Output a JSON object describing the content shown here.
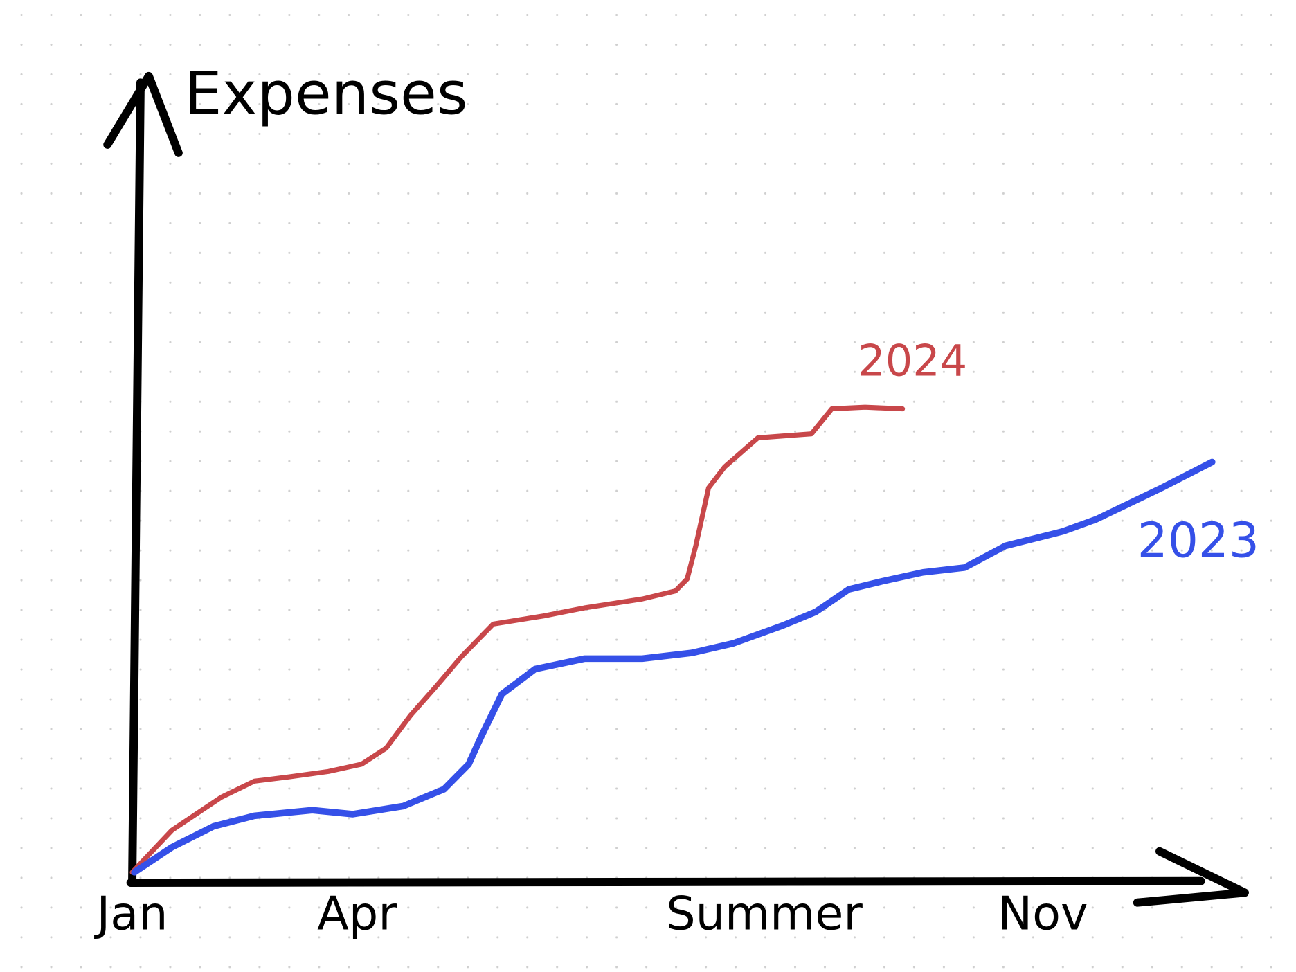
{
  "chart_data": {
    "type": "line",
    "y_label": "Expenses",
    "xlim": [
      0,
      104
    ],
    "ylim": [
      0,
      100
    ],
    "xticks": [
      {
        "value": 0,
        "label": "Jan"
      },
      {
        "value": 21,
        "label": "Apr"
      },
      {
        "value": 59,
        "label": "Summer"
      },
      {
        "value": 85,
        "label": "Nov"
      }
    ],
    "series": [
      {
        "name": "2024",
        "color": "#c8474a",
        "x": [
          0,
          3.7,
          8.3,
          11.4,
          14.5,
          18.3,
          21.4,
          23.7,
          26.0,
          28.4,
          30.7,
          33.7,
          38.4,
          42.2,
          47.6,
          50.7,
          51.8,
          52.6,
          53.8,
          55.3,
          58.4,
          63.4,
          65.3,
          68.4,
          71.9
        ],
        "values": [
          1.0,
          6.2,
          10.3,
          12.3,
          12.8,
          13.5,
          14.4,
          16.4,
          20.5,
          24.1,
          27.7,
          31.8,
          32.8,
          33.8,
          34.9,
          35.9,
          37.4,
          41.5,
          48.7,
          51.3,
          54.9,
          55.4,
          58.5,
          58.7,
          58.5
        ]
      },
      {
        "name": "2023",
        "color": "#3550e8",
        "x": [
          0.2,
          3.7,
          7.6,
          11.4,
          16.8,
          20.6,
          25.3,
          29.1,
          31.4,
          32.6,
          34.5,
          37.6,
          42.2,
          47.6,
          52.2,
          56.1,
          60.7,
          63.8,
          66.9,
          70.0,
          73.8,
          77.7,
          81.5,
          86.9,
          90.0,
          96.1,
          100.8
        ],
        "values": [
          1.0,
          4.1,
          6.7,
          8.0,
          8.7,
          8.2,
          9.2,
          11.3,
          14.4,
          17.9,
          23.1,
          26.2,
          27.5,
          27.5,
          28.2,
          29.4,
          31.6,
          33.3,
          36.1,
          37.1,
          38.2,
          38.8,
          41.5,
          43.3,
          44.8,
          48.7,
          51.9
        ]
      }
    ]
  }
}
